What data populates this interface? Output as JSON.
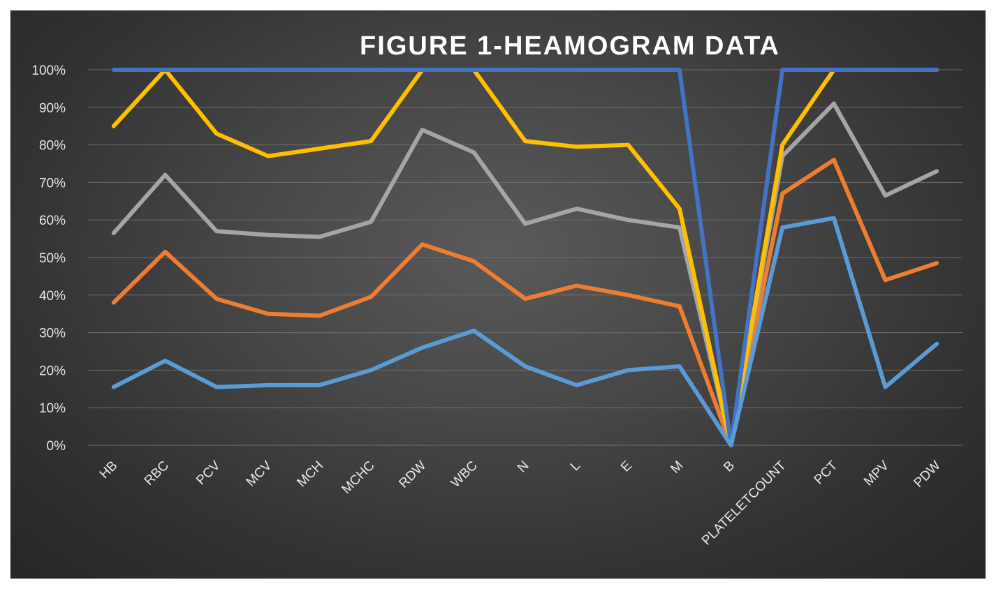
{
  "chart_data": {
    "type": "line",
    "title": "FIGURE 1-HEAMOGRAM DATA",
    "xlabel": "",
    "ylabel": "",
    "ylim": [
      0,
      100
    ],
    "y_unit": "%",
    "grid": true,
    "legend": "none",
    "categories": [
      "HB",
      "RBC",
      "PCV",
      "MCV",
      "MCH",
      "MCHC",
      "RDW",
      "WBC",
      "N",
      "L",
      "E",
      "M",
      "B",
      "PLATELETCOUNT",
      "PCT",
      "MPV",
      "PDW"
    ],
    "y_ticks": [
      "0%",
      "10%",
      "20%",
      "30%",
      "40%",
      "50%",
      "60%",
      "70%",
      "80%",
      "90%",
      "100%"
    ],
    "series": [
      {
        "color": "#4472c4",
        "values": [
          100,
          100,
          100,
          100,
          100,
          100,
          100,
          100,
          100,
          100,
          100,
          100,
          0,
          100,
          100,
          100,
          100
        ]
      },
      {
        "color": "#ffc000",
        "values": [
          85,
          100,
          83,
          77,
          79,
          81,
          100,
          100,
          81,
          79.5,
          80,
          63,
          0,
          80,
          100,
          100,
          100
        ]
      },
      {
        "color": "#a5a5a5",
        "values": [
          56.5,
          72,
          57,
          56,
          55.5,
          59.5,
          84,
          78,
          59,
          63,
          60,
          58,
          0,
          77,
          91,
          66.5,
          73
        ]
      },
      {
        "color": "#ed7d31",
        "values": [
          38,
          51.5,
          39,
          35,
          34.5,
          39.5,
          53.5,
          49,
          39,
          42.5,
          40,
          37,
          0,
          67,
          76,
          44,
          48.5
        ]
      },
      {
        "color": "#5b9bd5",
        "values": [
          15.5,
          22.5,
          15.5,
          16,
          16,
          20,
          26,
          30.5,
          21,
          16,
          20,
          21,
          0,
          58,
          60.5,
          15.5,
          27
        ]
      }
    ]
  }
}
